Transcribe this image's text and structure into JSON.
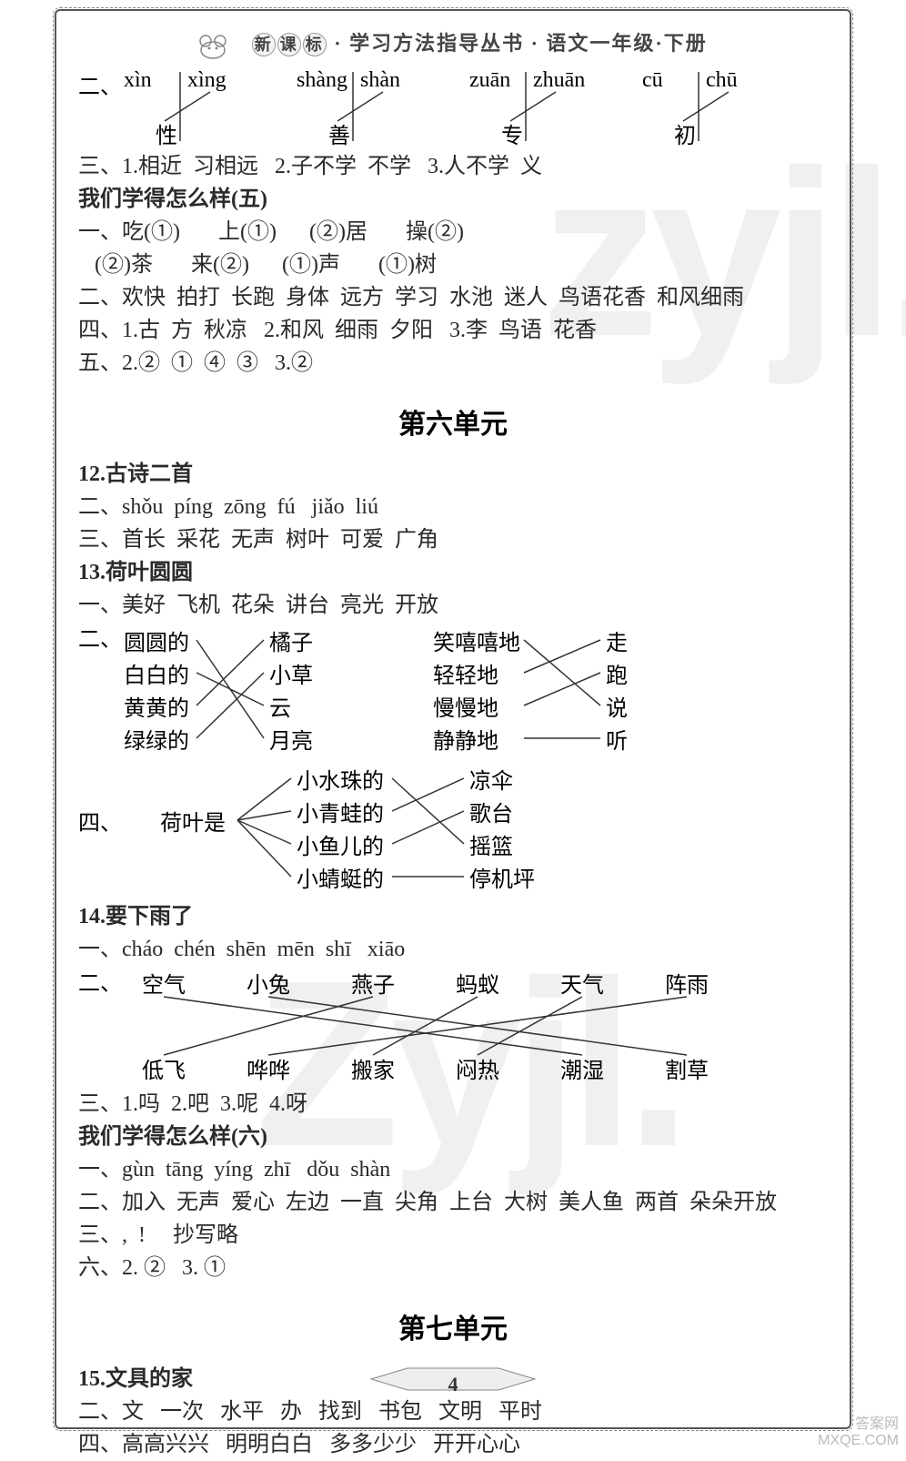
{
  "header": {
    "brand_chars": [
      "新",
      "课",
      "标"
    ],
    "subtitle": "· 学习方法指导丛书 · 语文一年级·下册"
  },
  "watermarks": {
    "w1": "zyjl.",
    "w2": "Zyjl."
  },
  "corner": {
    "l1": "答案网",
    "l2": "MXQE.COM"
  },
  "page_number": "4",
  "sec2_pinyin": {
    "prefix": "二、",
    "pairs": [
      {
        "p": [
          "xìn",
          "xìng"
        ],
        "char": "性",
        "pick": 1
      },
      {
        "p": [
          "shàng",
          "shàn"
        ],
        "char": "善",
        "pick": 1
      },
      {
        "p": [
          "zuān",
          "zhuān"
        ],
        "char": "专",
        "pick": 1
      },
      {
        "p": [
          "cū",
          "chū"
        ],
        "char": "初",
        "pick": 1
      }
    ]
  },
  "lines_top": [
    "三、1.相近  习相远   2.子不学  不学   3.人不学  义",
    "我们学得怎么样(五)",
    "一、吃(①)       上(①)      (②)居       操(②)",
    "   (②)茶       来(②)      (①)声       (①)树",
    "二、欢快  拍打  长跑  身体  远方  学习  水池  迷人  鸟语花香  和风细雨",
    "四、1.古  方  秋凉   2.和风  细雨  夕阳   3.李  鸟语  花香",
    "五、2.②  ①  ④  ③   3.②"
  ],
  "lines_top_bold": [
    false,
    true,
    false,
    false,
    false,
    false,
    false
  ],
  "unit6_title": "第六单元",
  "poem12": {
    "title": "12.古诗二首",
    "l2": "二、shǒu  píng  zōng  fú   jiǎo  liú",
    "l3": "三、首长  采花  无声  树叶  可爱  广角"
  },
  "poem13": {
    "title": "13.荷叶圆圆",
    "l1": "一、美好  飞机  花朵  讲台  亮光  开放",
    "match2": {
      "prefix": "二、",
      "leftA": [
        "圆圆的",
        "白白的",
        "黄黄的",
        "绿绿的"
      ],
      "rightA": [
        "橘子",
        "小草",
        "云",
        "月亮"
      ],
      "mapA": [
        [
          0,
          3
        ],
        [
          1,
          2
        ],
        [
          2,
          0
        ],
        [
          3,
          1
        ]
      ],
      "leftB": [
        "笑嘻嘻地",
        "轻轻地",
        "慢慢地",
        "静静地"
      ],
      "rightB": [
        "走",
        "跑",
        "说",
        "听"
      ],
      "mapB": [
        [
          0,
          2
        ],
        [
          1,
          0
        ],
        [
          2,
          1
        ],
        [
          3,
          3
        ]
      ]
    },
    "match4": {
      "prefix": "四、",
      "stem": "荷叶是",
      "left": [
        "小水珠的",
        "小青蛙的",
        "小鱼儿的",
        "小蜻蜓的"
      ],
      "right": [
        "凉伞",
        "歌台",
        "摇篮",
        "停机坪"
      ],
      "map": [
        [
          0,
          2
        ],
        [
          1,
          0
        ],
        [
          2,
          1
        ],
        [
          3,
          3
        ]
      ]
    }
  },
  "poem14": {
    "title": "14.要下雨了",
    "l1": "一、cháo  chén  shēn  mēn  shī   xiāo",
    "match2": {
      "prefix": "二、",
      "top": [
        "空气",
        "小兔",
        "燕子",
        "蚂蚁",
        "天气",
        "阵雨"
      ],
      "bot": [
        "低飞",
        "哗哗",
        "搬家",
        "闷热",
        "潮湿",
        "割草"
      ],
      "map": [
        [
          0,
          4
        ],
        [
          1,
          5
        ],
        [
          2,
          0
        ],
        [
          3,
          2
        ],
        [
          4,
          3
        ],
        [
          5,
          1
        ]
      ]
    },
    "l3": "三、1.吗  2.吧  3.呢  4.呀"
  },
  "review6": {
    "title": "我们学得怎么样(六)",
    "l1": "一、gùn  tāng  yíng  zhī   dǒu  shàn",
    "l2": "二、加入  无声  爱心  左边  一直  尖角  上台  大树  美人鱼  两首  朵朵开放",
    "l3": "三、,  !     抄写略",
    "l6": "六、2. ②   3. ①"
  },
  "unit7_title": "第七单元",
  "poem15": {
    "title": "15.文具的家",
    "l2": "二、文   一次   水平   办   找到   书包   文明   平时",
    "l4": "四、高高兴兴   明明白白   多多少少   开开心心"
  },
  "colors": {
    "text": "#2a2a2a",
    "line": "#333333",
    "border": "#555555"
  }
}
